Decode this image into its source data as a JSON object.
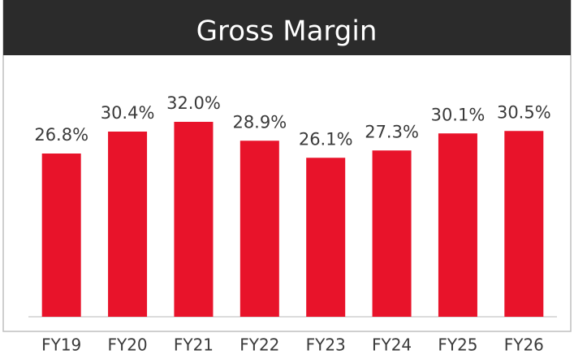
{
  "chart_data": {
    "type": "bar",
    "title": "Gross Margin",
    "categories": [
      "FY19",
      "FY20",
      "FY21",
      "FY22",
      "FY23",
      "FY24",
      "FY25",
      "FY26"
    ],
    "values": [
      26.8,
      30.4,
      32.0,
      28.9,
      26.1,
      27.3,
      30.1,
      30.5
    ],
    "value_labels": [
      "26.8%",
      "30.4%",
      "32.0%",
      "28.9%",
      "26.1%",
      "27.3%",
      "30.1%",
      "30.5%"
    ],
    "color": "#e8132a"
  }
}
